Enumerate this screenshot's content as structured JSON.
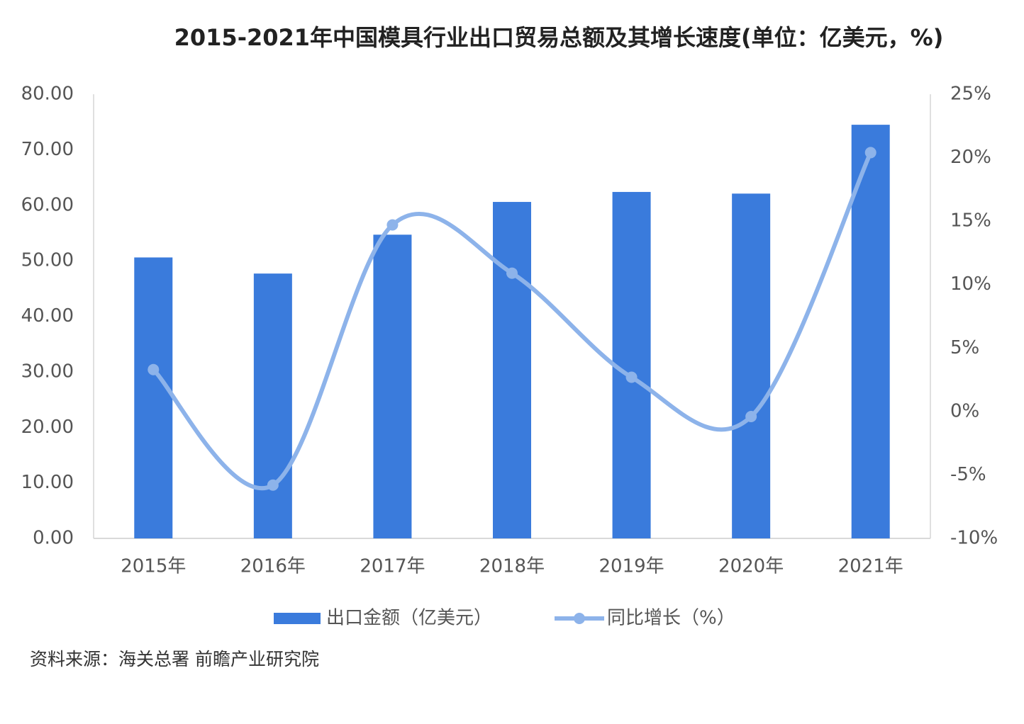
{
  "chart_data": {
    "type": "bar-line",
    "title": "2015-2021年中国模具行业出口贸易总额及其增长速度(单位：亿美元，%)",
    "categories": [
      "2015年",
      "2016年",
      "2017年",
      "2018年",
      "2019年",
      "2020年",
      "2021年"
    ],
    "series": [
      {
        "name": "出口金额（亿美元）",
        "type": "bar",
        "color": "#3a7bdc",
        "values": [
          50.6,
          47.7,
          54.7,
          60.6,
          62.4,
          62.1,
          74.5
        ]
      },
      {
        "name": "同比增长（%）",
        "type": "line",
        "axis": "y2",
        "color": "#8db3ea",
        "values": [
          3.3,
          -5.8,
          14.7,
          10.9,
          2.7,
          -0.4,
          20.4
        ]
      }
    ],
    "ylim": [
      0,
      80
    ],
    "yticks": [
      {
        "value": 0,
        "label": "0.00"
      },
      {
        "value": 10,
        "label": "10.00"
      },
      {
        "value": 20,
        "label": "20.00"
      },
      {
        "value": 30,
        "label": "30.00"
      },
      {
        "value": 40,
        "label": "40.00"
      },
      {
        "value": 50,
        "label": "50.00"
      },
      {
        "value": 60,
        "label": "60.00"
      },
      {
        "value": 70,
        "label": "70.00"
      },
      {
        "value": 80,
        "label": "80.00"
      }
    ],
    "y2lim": [
      -10,
      25
    ],
    "y2ticks": [
      {
        "value": -10,
        "label": "-10%"
      },
      {
        "value": -5,
        "label": "-5%"
      },
      {
        "value": 0,
        "label": "0%"
      },
      {
        "value": 5,
        "label": "5%"
      },
      {
        "value": 10,
        "label": "10%"
      },
      {
        "value": 15,
        "label": "15%"
      },
      {
        "value": 20,
        "label": "20%"
      },
      {
        "value": 25,
        "label": "25%"
      }
    ],
    "grid": false,
    "legend": "bottom",
    "source": "资料来源：海关总署 前瞻产业研究院"
  }
}
